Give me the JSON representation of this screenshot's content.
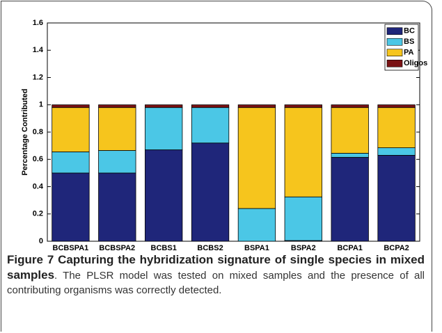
{
  "chart_data": {
    "type": "stacked_bar",
    "ylabel": "Percentage Contributed",
    "categories": [
      "BCBSPA1",
      "BCBSPA2",
      "BCBS1",
      "BCBS2",
      "BSPA1",
      "BSPA2",
      "BCPA1",
      "BCPA2"
    ],
    "series": [
      {
        "name": "BC",
        "color": "#1f267a",
        "values": [
          0.5,
          0.5,
          0.67,
          0.72,
          0,
          0.005,
          0.615,
          0.63
        ]
      },
      {
        "name": "BS",
        "color": "#4bc7e6",
        "values": [
          0.155,
          0.165,
          0.31,
          0.26,
          0.24,
          0.32,
          0.03,
          0.055
        ]
      },
      {
        "name": "PA",
        "color": "#f6c51d",
        "values": [
          0.325,
          0.315,
          0,
          0,
          0.74,
          0.655,
          0.335,
          0.295
        ]
      },
      {
        "name": "Oligos",
        "color": "#7a1214",
        "values": [
          0.02,
          0.02,
          0.02,
          0.02,
          0.02,
          0.02,
          0.02,
          0.02
        ]
      }
    ],
    "ylim": [
      0,
      1.6
    ],
    "yticks": [
      0,
      0.2,
      0.4,
      0.6,
      0.8,
      1,
      1.2,
      1.4,
      1.6
    ],
    "legend": "upper right",
    "caption": {
      "title": "Figure 7 Capturing the hybridization signature of single species in mixed samples",
      "text": ". The PLSR model was tested on mixed samples and the presence of all contributing organisms was correctly detected."
    }
  }
}
